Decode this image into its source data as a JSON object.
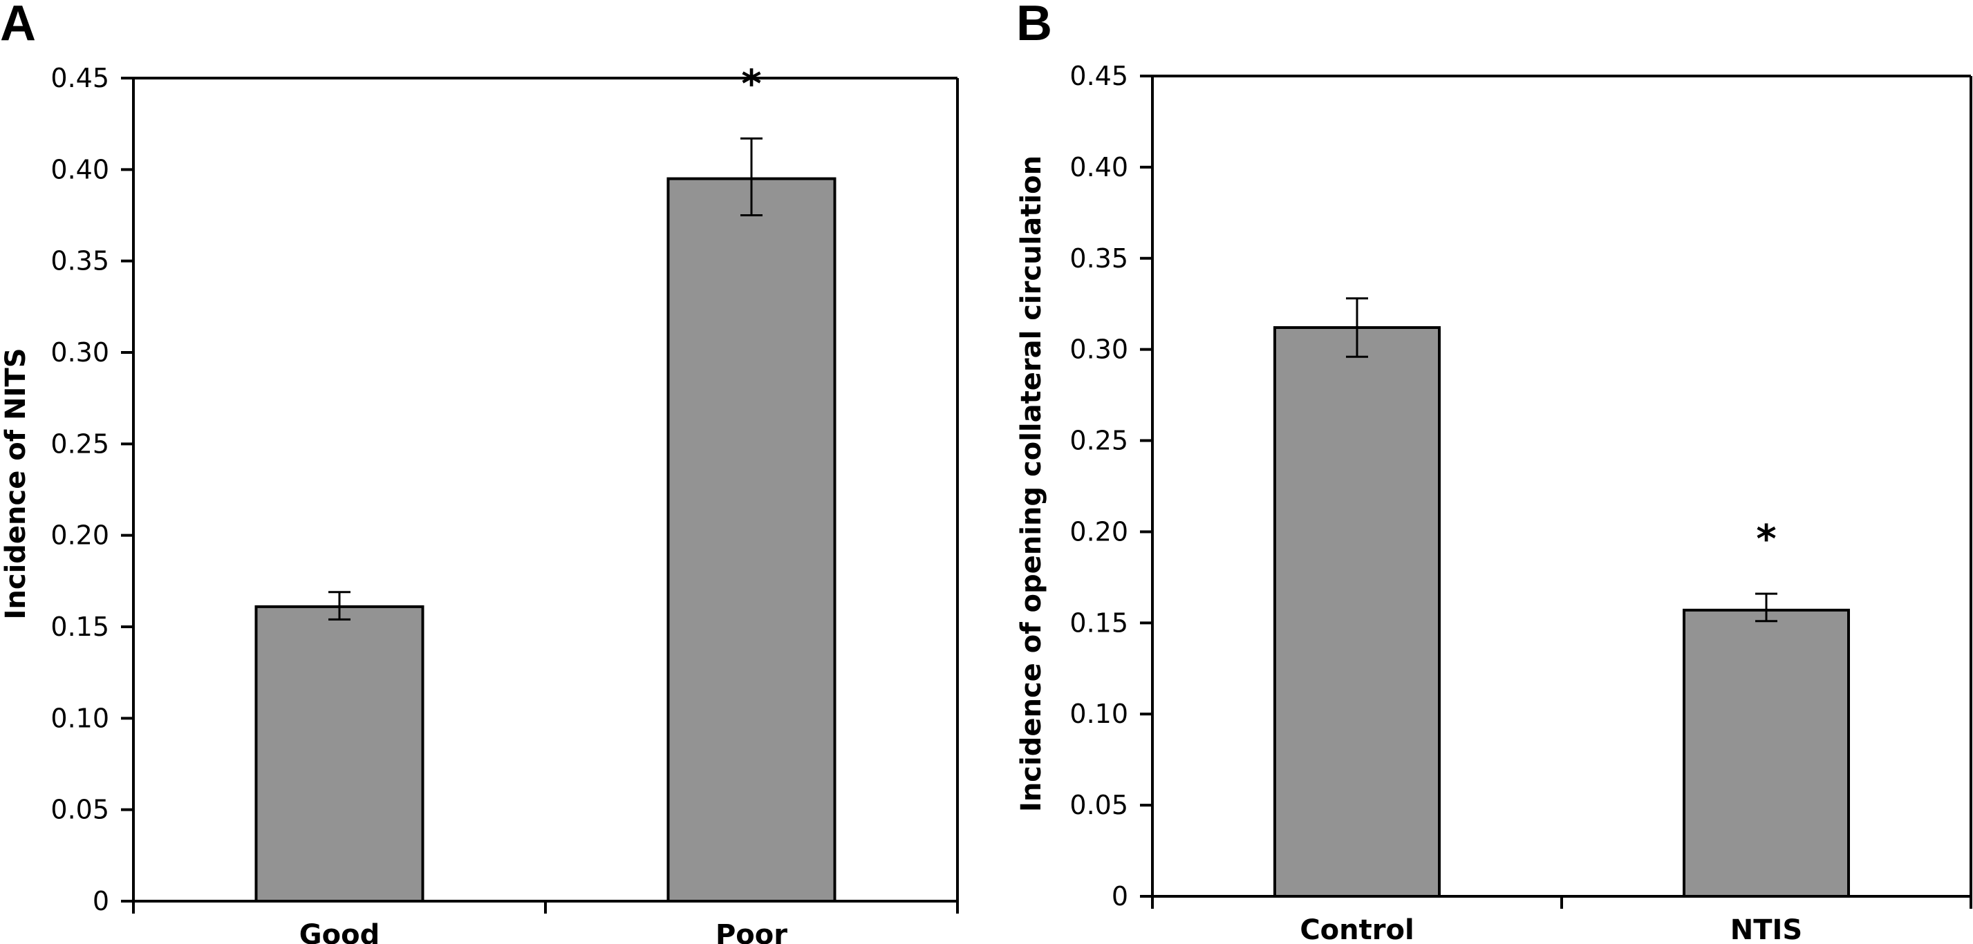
{
  "chart_data": [
    {
      "type": "bar",
      "panel": "A",
      "title": "",
      "xlabel": "",
      "ylabel": "Incidence of NITS",
      "ylim": [
        0,
        0.45
      ],
      "yticks": [
        "0",
        "0.05",
        "0.10",
        "0.15",
        "0.20",
        "0.25",
        "0.30",
        "0.35",
        "0.40",
        "0.45"
      ],
      "ytick_values": [
        0,
        0.05,
        0.1,
        0.15,
        0.2,
        0.25,
        0.3,
        0.35,
        0.4,
        0.45
      ],
      "categories": [
        "Good",
        "Poor"
      ],
      "values": [
        0.161,
        0.395
      ],
      "error_low": [
        0.154,
        0.375
      ],
      "error_high": [
        0.169,
        0.417
      ],
      "significance": [
        "",
        "*"
      ],
      "bar_color": "#939393",
      "grid": false
    },
    {
      "type": "bar",
      "panel": "B",
      "title": "",
      "xlabel": "",
      "ylabel": "Incidence of opening collateral circulation",
      "ylim": [
        0,
        0.45
      ],
      "yticks": [
        "0",
        "0.05",
        "0.10",
        "0.15",
        "0.20",
        "0.25",
        "0.30",
        "0.35",
        "0.40",
        "0.45"
      ],
      "ytick_values": [
        0,
        0.05,
        0.1,
        0.15,
        0.2,
        0.25,
        0.3,
        0.35,
        0.4,
        0.45
      ],
      "categories": [
        "Control",
        "NTIS"
      ],
      "values": [
        0.312,
        0.157
      ],
      "error_low": [
        0.296,
        0.151
      ],
      "error_high": [
        0.328,
        0.166
      ],
      "significance": [
        "",
        "*"
      ],
      "bar_color": "#939393",
      "grid": false
    }
  ]
}
